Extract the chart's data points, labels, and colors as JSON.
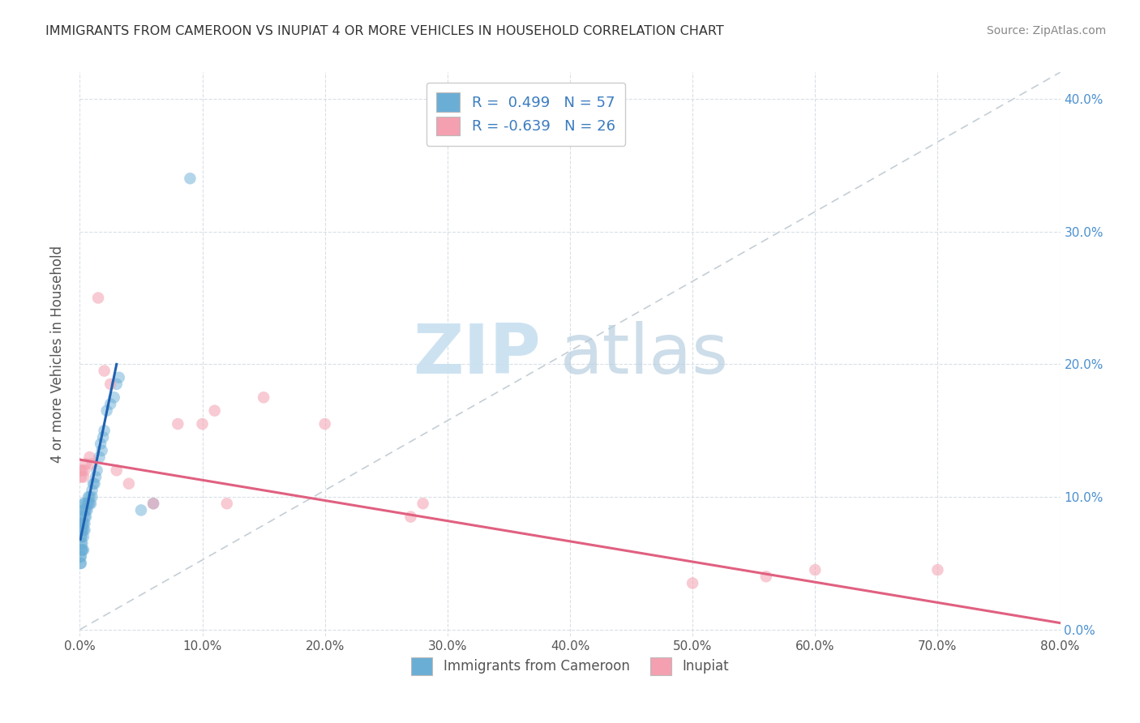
{
  "title": "IMMIGRANTS FROM CAMEROON VS INUPIAT 4 OR MORE VEHICLES IN HOUSEHOLD CORRELATION CHART",
  "source": "Source: ZipAtlas.com",
  "ylabel": "4 or more Vehicles in Household",
  "xmin": 0.0,
  "xmax": 0.8,
  "ymin": -0.005,
  "ymax": 0.42,
  "xticks": [
    0.0,
    0.1,
    0.2,
    0.3,
    0.4,
    0.5,
    0.6,
    0.7,
    0.8
  ],
  "yticks": [
    0.0,
    0.1,
    0.2,
    0.3,
    0.4
  ],
  "xtick_labels": [
    "0.0%",
    "10.0%",
    "20.0%",
    "30.0%",
    "40.0%",
    "50.0%",
    "60.0%",
    "70.0%",
    "80.0%"
  ],
  "ytick_labels_right": [
    "0.0%",
    "10.0%",
    "20.0%",
    "30.0%",
    "40.0%"
  ],
  "legend_r1": "R =  0.499   N = 57",
  "legend_r2": "R = -0.639   N = 26",
  "color_blue": "#6aaed6",
  "color_pink": "#f4a0b0",
  "color_blue_line": "#2060b0",
  "color_pink_line": "#e06080",
  "color_ref_line": "#b0bec8",
  "cameroon_x": [
    0.0005,
    0.0005,
    0.001,
    0.001,
    0.001,
    0.001,
    0.001,
    0.001,
    0.001,
    0.0015,
    0.0015,
    0.002,
    0.002,
    0.002,
    0.002,
    0.002,
    0.002,
    0.0025,
    0.003,
    0.003,
    0.003,
    0.003,
    0.003,
    0.003,
    0.004,
    0.004,
    0.004,
    0.004,
    0.004,
    0.005,
    0.005,
    0.006,
    0.006,
    0.007,
    0.007,
    0.008,
    0.008,
    0.009,
    0.01,
    0.01,
    0.011,
    0.012,
    0.013,
    0.014,
    0.016,
    0.017,
    0.018,
    0.019,
    0.02,
    0.022,
    0.025,
    0.028,
    0.03,
    0.032,
    0.05,
    0.06,
    0.09
  ],
  "cameroon_y": [
    0.055,
    0.05,
    0.06,
    0.065,
    0.07,
    0.075,
    0.08,
    0.055,
    0.05,
    0.07,
    0.075,
    0.06,
    0.065,
    0.075,
    0.08,
    0.085,
    0.06,
    0.08,
    0.06,
    0.07,
    0.075,
    0.08,
    0.09,
    0.095,
    0.075,
    0.08,
    0.085,
    0.09,
    0.095,
    0.085,
    0.09,
    0.09,
    0.095,
    0.095,
    0.1,
    0.095,
    0.1,
    0.095,
    0.1,
    0.105,
    0.11,
    0.11,
    0.115,
    0.12,
    0.13,
    0.14,
    0.135,
    0.145,
    0.15,
    0.165,
    0.17,
    0.175,
    0.185,
    0.19,
    0.09,
    0.095,
    0.34
  ],
  "inupiat_x": [
    0.0005,
    0.001,
    0.002,
    0.003,
    0.004,
    0.005,
    0.008,
    0.01,
    0.015,
    0.02,
    0.025,
    0.03,
    0.04,
    0.06,
    0.08,
    0.1,
    0.11,
    0.12,
    0.15,
    0.2,
    0.27,
    0.28,
    0.5,
    0.56,
    0.6,
    0.7
  ],
  "inupiat_y": [
    0.12,
    0.115,
    0.12,
    0.115,
    0.12,
    0.125,
    0.13,
    0.125,
    0.25,
    0.195,
    0.185,
    0.12,
    0.11,
    0.095,
    0.155,
    0.155,
    0.165,
    0.095,
    0.175,
    0.155,
    0.085,
    0.095,
    0.035,
    0.04,
    0.045,
    0.045
  ],
  "blue_line_x": [
    0.0005,
    0.03
  ],
  "blue_line_y": [
    0.068,
    0.2
  ],
  "pink_line_x": [
    0.0005,
    0.8
  ],
  "pink_line_y": [
    0.128,
    0.005
  ]
}
